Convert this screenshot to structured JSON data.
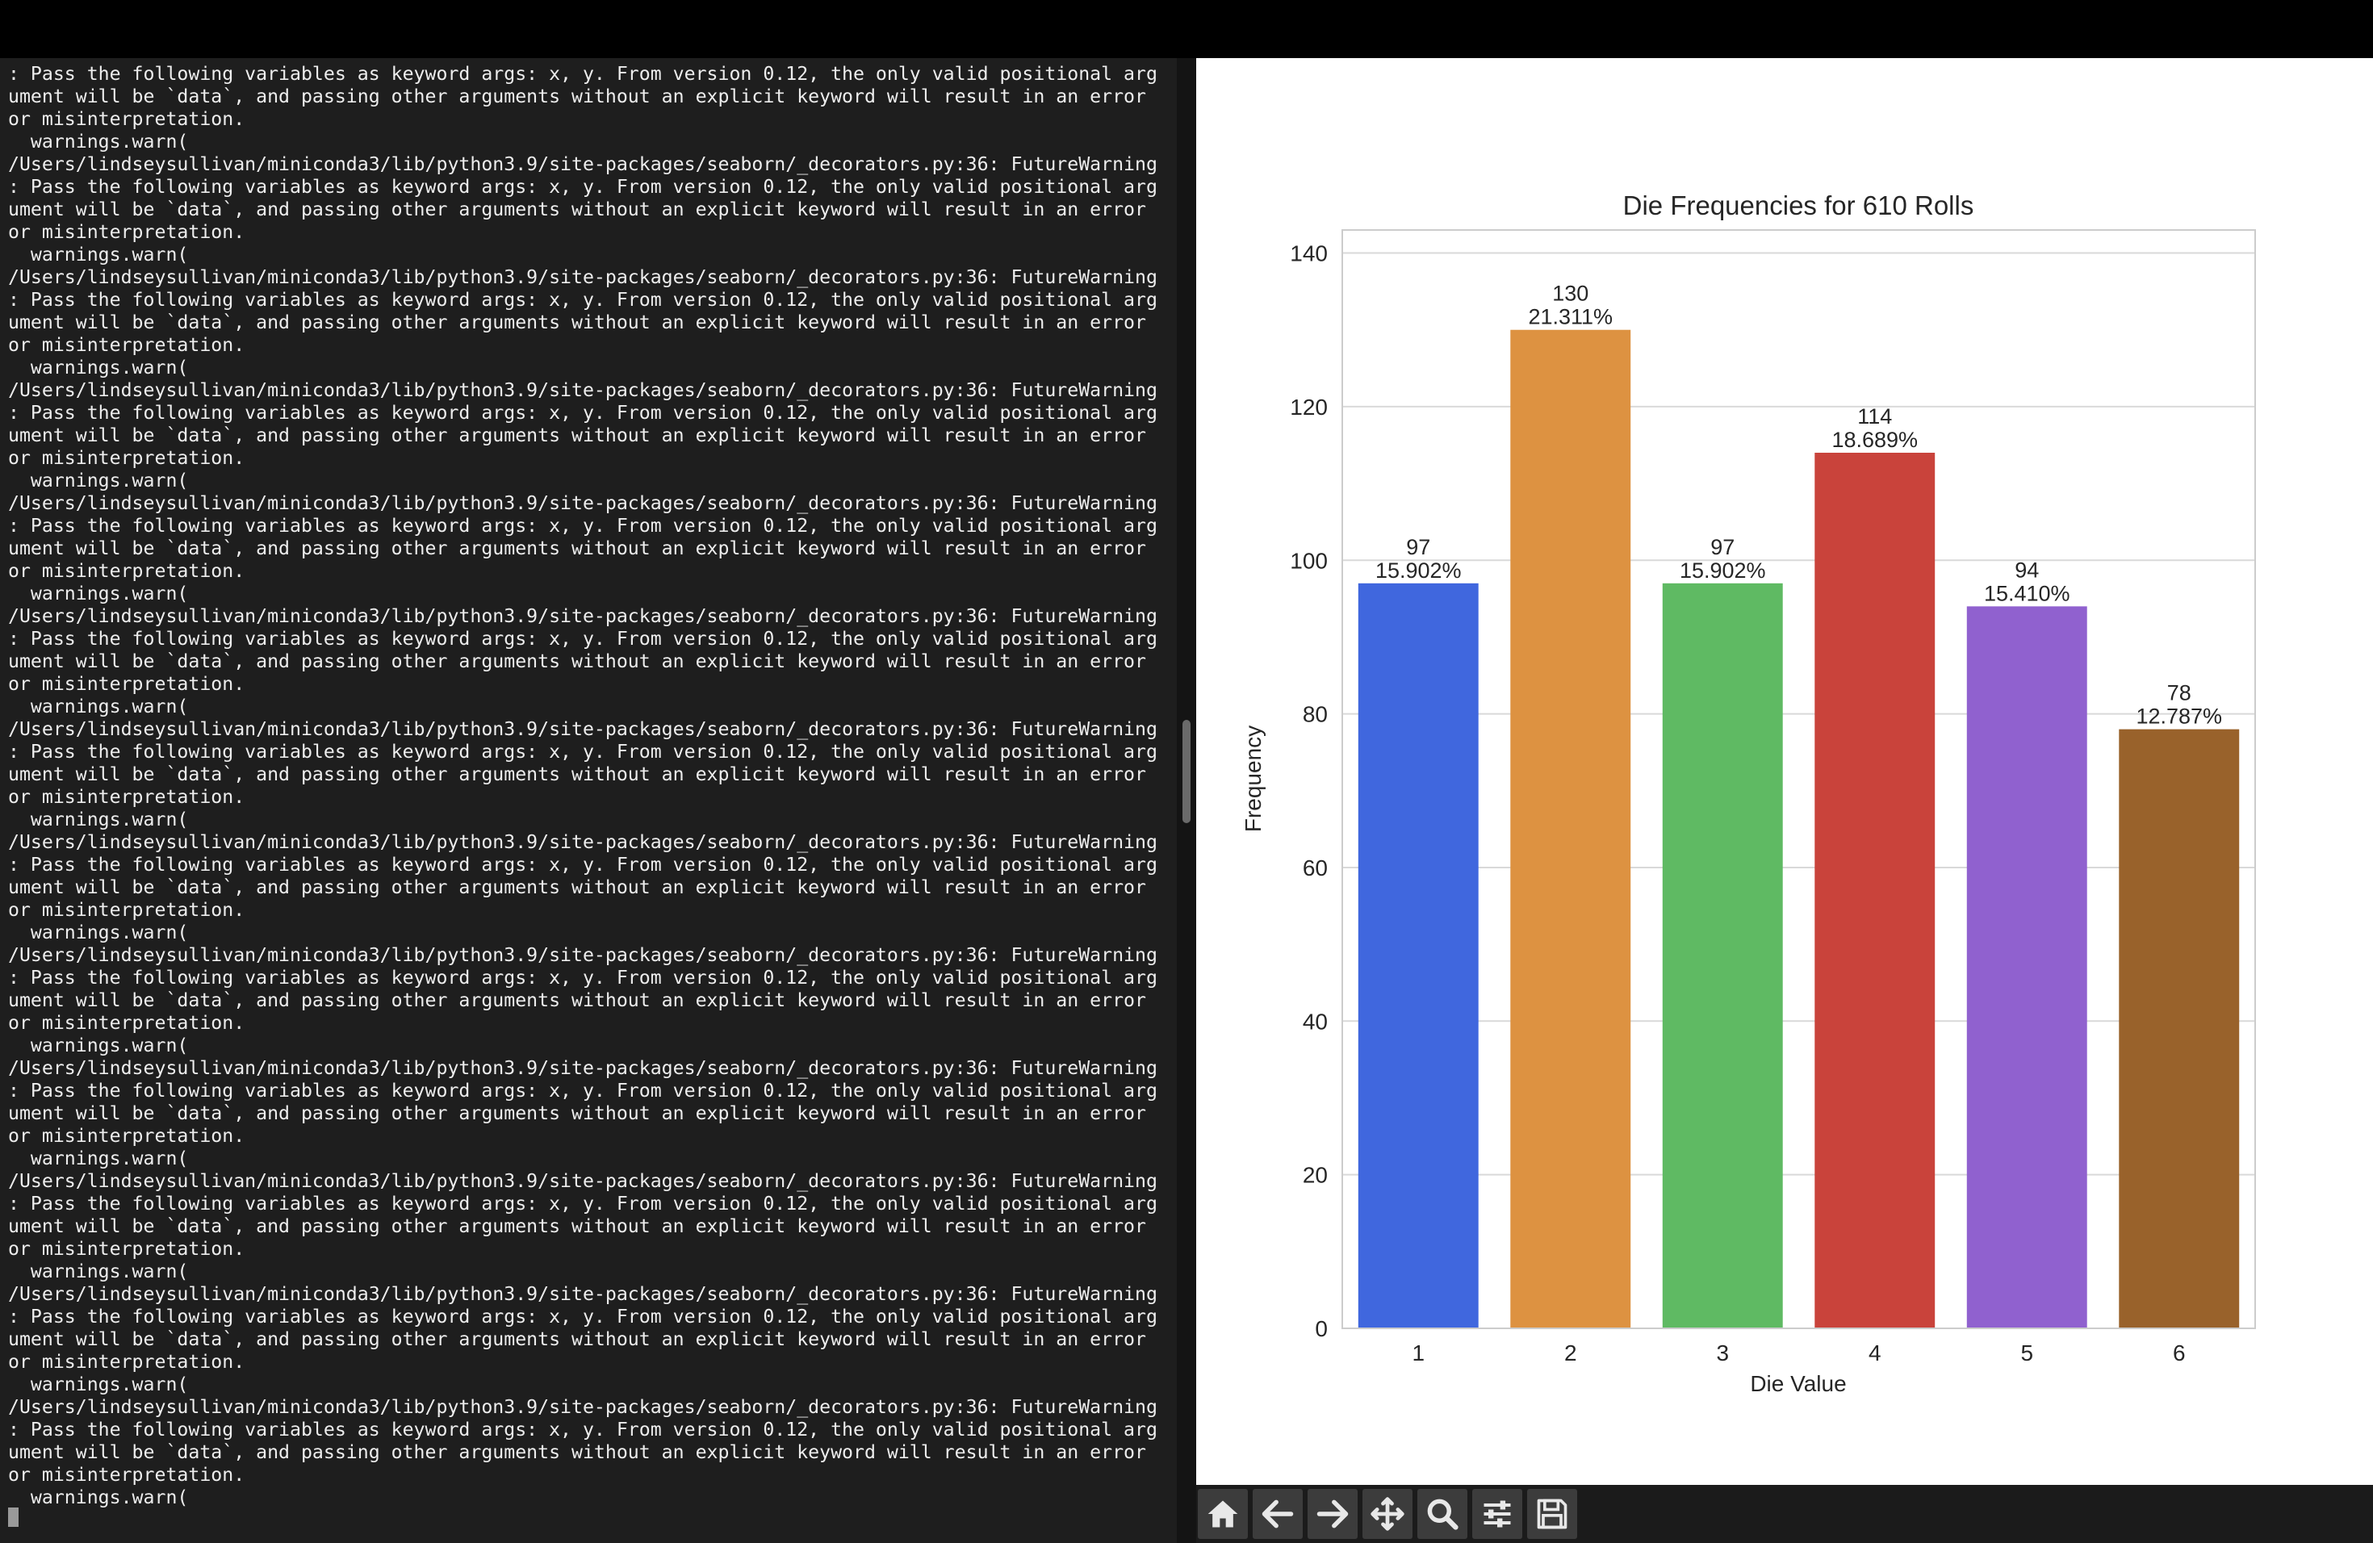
{
  "terminal": {
    "first_lines": [
      ": Pass the following variables as keyword args: x, y. From version 0.12, the only valid positional arg",
      "ument will be `data`, and passing other arguments without an explicit keyword will result in an error",
      "or misinterpretation.",
      "  warnings.warn("
    ],
    "warning_block": [
      "/Users/lindseysullivan/miniconda3/lib/python3.9/site-packages/seaborn/_decorators.py:36: FutureWarning",
      ": Pass the following variables as keyword args: x, y. From version 0.12, the only valid positional arg",
      "ument will be `data`, and passing other arguments without an explicit keyword will result in an error",
      "or misinterpretation.",
      "  warnings.warn("
    ],
    "warning_block_repeat": 12
  },
  "toolbar": {
    "buttons": [
      {
        "name": "home",
        "icon": "home-icon"
      },
      {
        "name": "back",
        "icon": "arrow-left-icon"
      },
      {
        "name": "forward",
        "icon": "arrow-right-icon"
      },
      {
        "name": "pan",
        "icon": "move-icon"
      },
      {
        "name": "zoom",
        "icon": "magnifier-icon"
      },
      {
        "name": "configure-subplots",
        "icon": "sliders-icon"
      },
      {
        "name": "save",
        "icon": "floppy-disk-icon"
      }
    ]
  },
  "chart_data": {
    "type": "bar",
    "title": "Die Frequencies for 610 Rolls",
    "xlabel": "Die Value",
    "ylabel": "Frequency",
    "categories": [
      "1",
      "2",
      "3",
      "4",
      "5",
      "6"
    ],
    "values": [
      97,
      130,
      97,
      114,
      94,
      78
    ],
    "value_labels": [
      "97",
      "130",
      "97",
      "114",
      "94",
      "78"
    ],
    "percent_labels": [
      "15.902%",
      "21.311%",
      "15.902%",
      "18.689%",
      "15.410%",
      "12.787%"
    ],
    "colors": [
      "#4067de",
      "#dd9241",
      "#5fba63",
      "#c9433b",
      "#9061cf",
      "#99622b"
    ],
    "ylim": [
      0,
      143
    ],
    "yticks": [
      0,
      20,
      40,
      60,
      80,
      100,
      120,
      140
    ],
    "grid": true,
    "legend": "none"
  }
}
